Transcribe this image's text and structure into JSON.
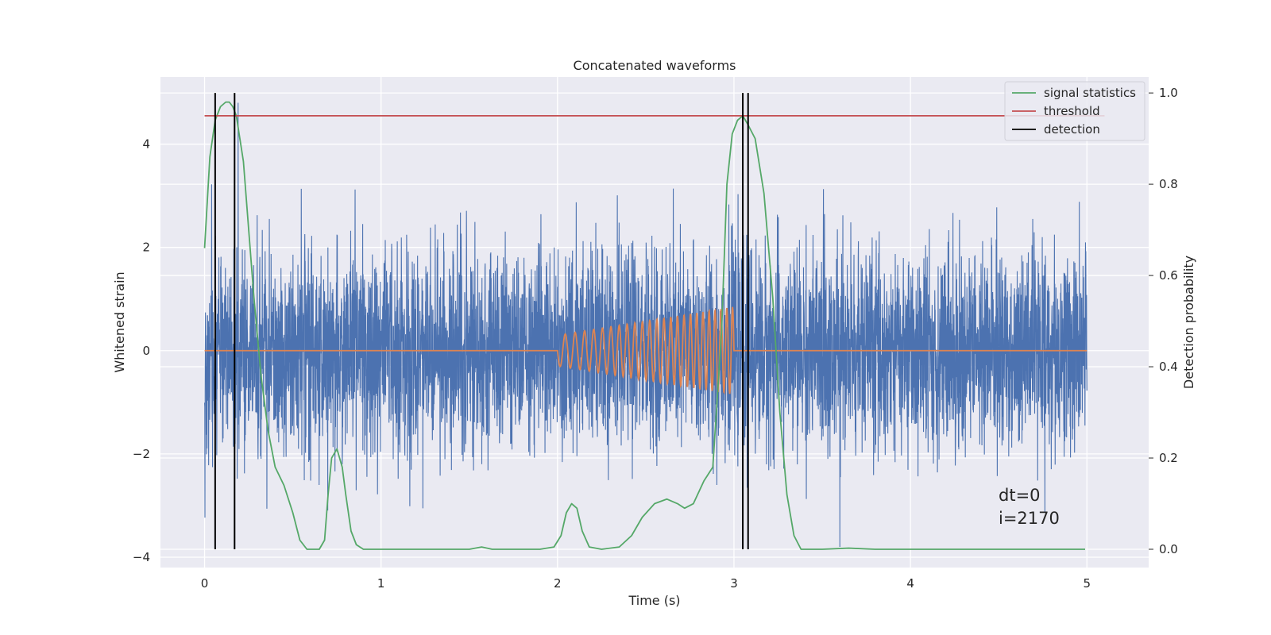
{
  "chart_data": {
    "type": "line",
    "title": "Concatenated waveforms",
    "xlabel": "Time (s)",
    "ylabel": "Whitened strain",
    "y2label": "Detection probability",
    "xlim": [
      -0.25,
      5.35
    ],
    "ylim": [
      -4.2,
      5.3
    ],
    "y2lim": [
      -0.04,
      1.035
    ],
    "x_ticks": [
      0,
      1,
      2,
      3,
      4,
      5
    ],
    "x_tick_labels": [
      "0",
      "1",
      "2",
      "3",
      "4",
      "5"
    ],
    "y_ticks": [
      -4,
      -2,
      0,
      2,
      4
    ],
    "y_tick_labels": [
      "−4",
      "−2",
      "0",
      "2",
      "4"
    ],
    "y2_ticks": [
      0.0,
      0.2,
      0.4,
      0.6,
      0.8,
      1.0
    ],
    "y2_tick_labels": [
      "0.0",
      "0.2",
      "0.4",
      "0.6",
      "0.8",
      "1.0"
    ],
    "grid": true,
    "legend_position": "top-right",
    "legend": [
      "signal statistics",
      "threshold",
      "detection"
    ],
    "colors": {
      "strain": "#4c72b0",
      "waveform": "#dd8452",
      "signal_statistics": "#55a868",
      "threshold": "#c44e52",
      "detection": "#000000",
      "background": "#eaeaf2",
      "grid": "#ffffff"
    },
    "strain_noise": {
      "x_start": 0,
      "x_end": 5,
      "typical_abs_max": 3.3,
      "min": -3.8,
      "max": 4.8
    },
    "waveform": {
      "x_start": 2.0,
      "x_end": 3.0,
      "amplitude_start": 0.3,
      "amplitude_end": 0.85,
      "cycles": 24
    },
    "series": [
      {
        "name": "signal statistics",
        "axis": "right",
        "x": [
          0,
          0.03,
          0.06,
          0.09,
          0.12,
          0.14,
          0.16,
          0.18,
          0.2,
          0.22,
          0.25,
          0.28,
          0.32,
          0.36,
          0.4,
          0.45,
          0.5,
          0.54,
          0.58,
          0.65,
          0.68,
          0.7,
          0.72,
          0.75,
          0.78,
          0.8,
          0.83,
          0.86,
          0.9,
          1.0,
          1.5,
          1.57,
          1.63,
          1.7,
          1.9,
          1.98,
          2.02,
          2.05,
          2.08,
          2.11,
          2.14,
          2.18,
          2.25,
          2.35,
          2.42,
          2.48,
          2.55,
          2.62,
          2.68,
          2.72,
          2.77,
          2.83,
          2.88,
          2.93,
          2.96,
          2.99,
          3.02,
          3.05,
          3.08,
          3.12,
          3.17,
          3.22,
          3.26,
          3.3,
          3.34,
          3.38,
          3.5,
          3.65,
          3.8,
          4.0,
          4.5,
          4.99
        ],
        "y": [
          0.66,
          0.86,
          0.94,
          0.97,
          0.98,
          0.98,
          0.97,
          0.95,
          0.9,
          0.85,
          0.7,
          0.55,
          0.38,
          0.26,
          0.18,
          0.14,
          0.08,
          0.02,
          0.0,
          0.0,
          0.02,
          0.12,
          0.2,
          0.22,
          0.18,
          0.12,
          0.04,
          0.01,
          0.0,
          0.0,
          0.0,
          0.005,
          0.0,
          0.0,
          0.0,
          0.005,
          0.03,
          0.08,
          0.1,
          0.09,
          0.04,
          0.005,
          0.0,
          0.005,
          0.03,
          0.07,
          0.1,
          0.11,
          0.1,
          0.09,
          0.1,
          0.15,
          0.18,
          0.48,
          0.8,
          0.91,
          0.94,
          0.95,
          0.93,
          0.9,
          0.78,
          0.55,
          0.3,
          0.12,
          0.03,
          0.0,
          0.0,
          0.0025,
          0.0,
          0.0,
          0.0,
          0.0
        ]
      },
      {
        "name": "threshold",
        "axis": "right",
        "x": [
          0,
          5.1
        ],
        "y": [
          0.95,
          0.95
        ]
      }
    ],
    "detections": [
      0.06,
      0.17,
      3.05,
      3.08
    ],
    "annotations": [
      "dt=0",
      "i=2170"
    ]
  }
}
